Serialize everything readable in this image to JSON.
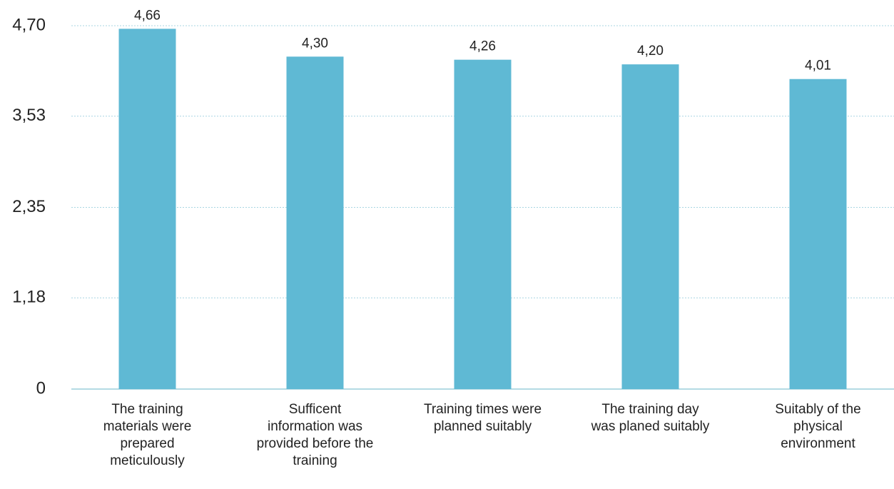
{
  "chart_data": {
    "type": "bar",
    "categories": [
      "The training materials were prepared meticulously",
      "Sufficent information was provided before the training",
      "Training times were planned suitably",
      "The training day was planed suitably",
      "Suitably of the physical environment"
    ],
    "values": [
      4.66,
      4.3,
      4.26,
      4.2,
      4.01
    ],
    "value_labels": [
      "4,66",
      "4,30",
      "4,26",
      "4,20",
      "4,01"
    ],
    "color": "#5fb9d4",
    "ylim": [
      0,
      4.7
    ],
    "yticks": [
      0,
      {
        "value": 1.18,
        "label": "1,18"
      },
      {
        "value": 2.35,
        "label": "2,35"
      },
      {
        "value": 3.53,
        "label": "3,53"
      },
      {
        "value": 4.7,
        "label": "4,70"
      }
    ],
    "grid": true
  }
}
